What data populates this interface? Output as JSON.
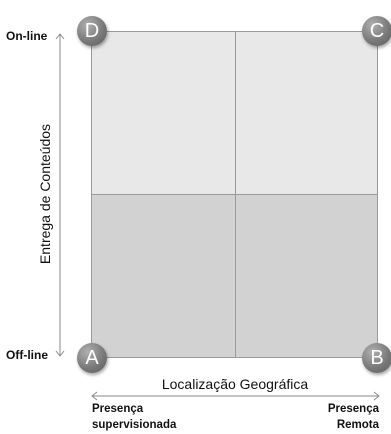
{
  "corners": {
    "top_left": "D",
    "top_right": "C",
    "bottom_left": "A",
    "bottom_right": "B"
  },
  "y_axis": {
    "title": "Entrega de Conteúdos",
    "top_label": "On-line",
    "bottom_label": "Off-line"
  },
  "x_axis": {
    "title": "Localização Geográfica",
    "left_label_line1": "Presença",
    "left_label_line2": "supervisionada",
    "right_label_line1": "Presença",
    "right_label_line2": "Remota"
  },
  "colors": {
    "top_quadrants": "#e8e8e8",
    "bottom_quadrants": "#d2d2d2",
    "corner_circle": "#7a7a7a"
  }
}
